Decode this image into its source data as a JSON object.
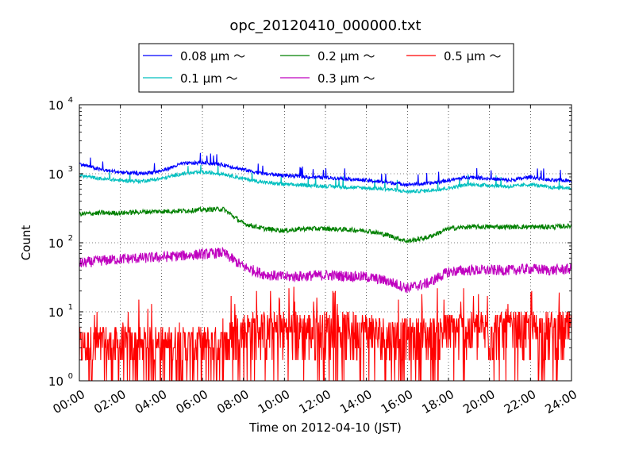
{
  "chart_data": {
    "type": "line",
    "title": "opc_20120410_000000.txt",
    "xlabel": "Time on 2012-04-10 (JST)",
    "ylabel": "Count",
    "x_tick_labels": [
      "00:00",
      "02:00",
      "04:00",
      "06:00",
      "08:00",
      "10:00",
      "12:00",
      "14:00",
      "16:00",
      "18:00",
      "20:00",
      "22:00",
      "24:00"
    ],
    "x_range_hours": [
      0,
      24
    ],
    "y_scale": "log",
    "ylim": [
      1,
      10000
    ],
    "y_ticks": [
      {
        "value": 1,
        "base": "10",
        "exp": "0"
      },
      {
        "value": 10,
        "base": "10",
        "exp": "1"
      },
      {
        "value": 100,
        "base": "10",
        "exp": "2"
      },
      {
        "value": 1000,
        "base": "10",
        "exp": "3"
      },
      {
        "value": 10000,
        "base": "10",
        "exp": "4"
      }
    ],
    "grid": true,
    "legend_position": "top-center",
    "series": [
      {
        "name": "0.08 μm ～",
        "color": "#0000ff",
        "x": [
          0,
          1,
          2,
          3,
          4,
          5,
          6,
          7,
          8,
          9,
          10,
          11,
          12,
          13,
          14,
          15,
          16,
          17,
          18,
          19,
          20,
          21,
          22,
          23,
          24
        ],
        "y": [
          1400,
          1150,
          1050,
          1000,
          1100,
          1400,
          1450,
          1350,
          1150,
          1000,
          950,
          900,
          880,
          850,
          800,
          750,
          700,
          720,
          800,
          900,
          850,
          800,
          900,
          800,
          800
        ]
      },
      {
        "name": "0.1 μm ～",
        "color": "#00bfbf",
        "x": [
          0,
          1,
          2,
          3,
          4,
          5,
          6,
          7,
          8,
          9,
          10,
          11,
          12,
          13,
          14,
          15,
          16,
          17,
          18,
          19,
          20,
          21,
          22,
          23,
          24
        ],
        "y": [
          950,
          850,
          800,
          780,
          850,
          1000,
          1050,
          1000,
          850,
          750,
          700,
          680,
          660,
          640,
          620,
          600,
          550,
          570,
          620,
          700,
          680,
          650,
          700,
          630,
          620
        ]
      },
      {
        "name": "0.2 μm ～",
        "color": "#008000",
        "x": [
          0,
          1,
          2,
          3,
          4,
          5,
          6,
          7,
          8,
          9,
          10,
          11,
          12,
          13,
          14,
          15,
          16,
          17,
          18,
          19,
          20,
          21,
          22,
          23,
          24
        ],
        "y": [
          260,
          270,
          270,
          280,
          285,
          290,
          300,
          310,
          190,
          160,
          150,
          160,
          160,
          155,
          150,
          130,
          105,
          120,
          160,
          170,
          170,
          170,
          170,
          170,
          175
        ]
      },
      {
        "name": "0.3 μm ～",
        "color": "#bf00bf",
        "x": [
          0,
          1,
          2,
          3,
          4,
          5,
          6,
          7,
          8,
          9,
          10,
          11,
          12,
          13,
          14,
          15,
          16,
          17,
          18,
          19,
          20,
          21,
          22,
          23,
          24
        ],
        "y": [
          50,
          55,
          58,
          60,
          62,
          65,
          68,
          72,
          45,
          35,
          32,
          33,
          34,
          33,
          32,
          28,
          22,
          26,
          38,
          40,
          40,
          40,
          42,
          40,
          42
        ]
      },
      {
        "name": "0.5 μm ～",
        "color": "#ff0000",
        "x": [
          0,
          1,
          2,
          3,
          4,
          5,
          6,
          7,
          8,
          9,
          10,
          11,
          12,
          13,
          14,
          15,
          16,
          17,
          18,
          19,
          20,
          21,
          22,
          23,
          24
        ],
        "y": [
          3,
          3,
          3,
          3,
          3,
          3,
          3,
          3,
          5,
          5,
          5,
          5,
          5,
          5,
          5,
          4,
          4,
          4,
          5,
          5,
          5,
          5,
          5,
          5,
          5
        ]
      }
    ]
  }
}
